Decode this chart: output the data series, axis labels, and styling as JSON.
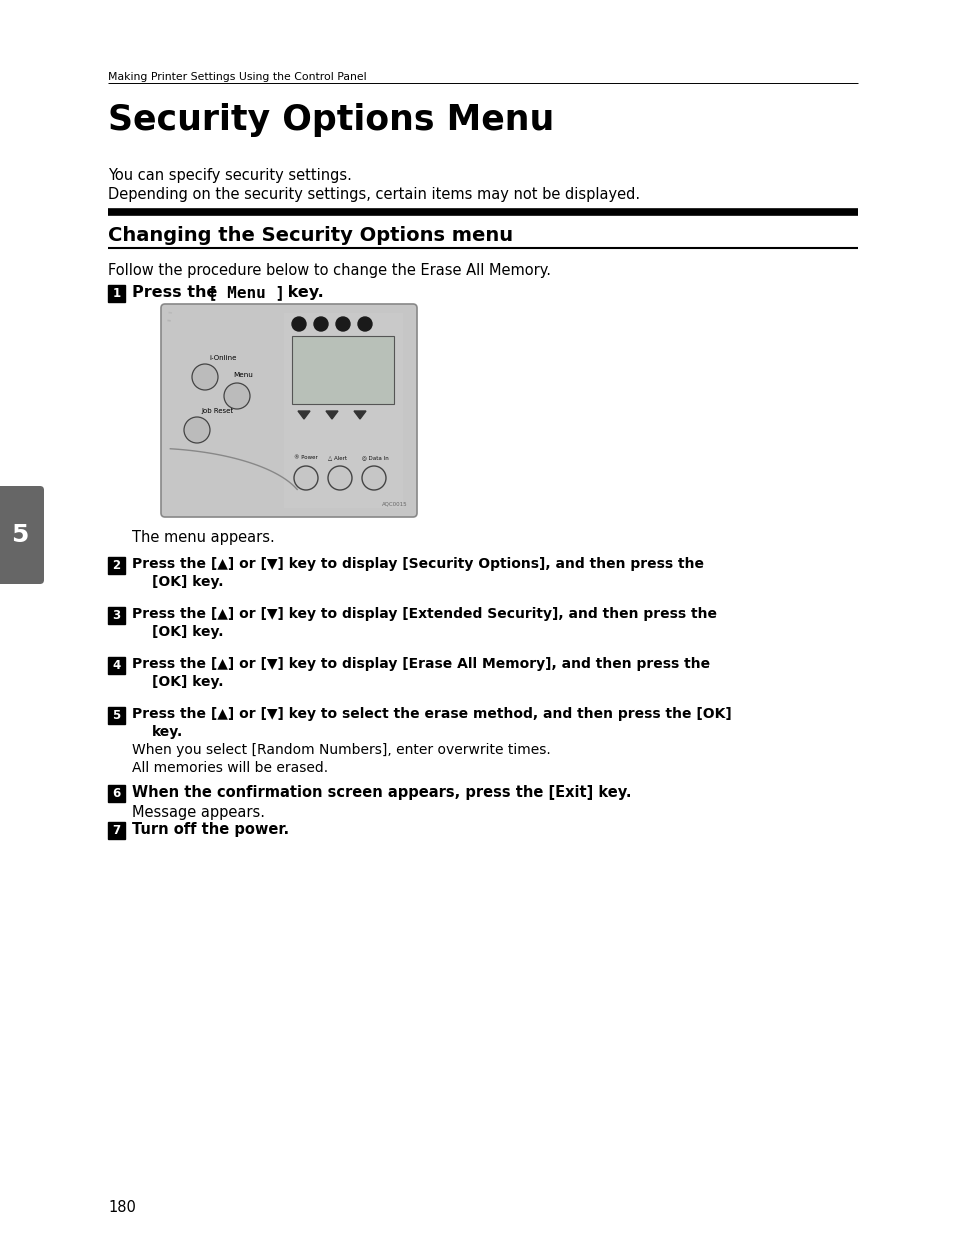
{
  "bg_color": "#ffffff",
  "header_text": "Making Printer Settings Using the Control Panel",
  "title": "Security Options Menu",
  "intro_line1": "You can specify security settings.",
  "intro_line2": "Depending on the security settings, certain items may not be displayed.",
  "section_title": "Changing the Security Options menu",
  "follow_text": "Follow the procedure below to change the Erase All Memory.",
  "step1_bold": "Press the [Menu] key.",
  "menu_appears": "The menu appears.",
  "step2_line1": "Press the [▲] or [▼] key to display [Security Options], and then press the",
  "step2_line2": "[OK] key.",
  "step3_line1": "Press the [▲] or [▼] key to display [Extended Security], and then press the",
  "step3_line2": "[OK] key.",
  "step4_line1": "Press the [▲] or [▼] key to display [Erase All Memory], and then press the",
  "step4_line2": "[OK] key.",
  "step5_line1": "Press the [▲] or [▼] key to select the erase method, and then press the [OK]",
  "step5_line2": "key.",
  "step5_note1": "When you select [Random Numbers], enter overwrite times.",
  "step5_note2": "All memories will be erased.",
  "step6_bold": "When the confirmation screen appears, press the [Exit] key.",
  "step6_note": "Message appears.",
  "step7_bold": "Turn off the power.",
  "page_number": "180",
  "sidebar_number": "5",
  "sidebar_color": "#666666",
  "ml": 108,
  "mr": 858,
  "indent": 132
}
